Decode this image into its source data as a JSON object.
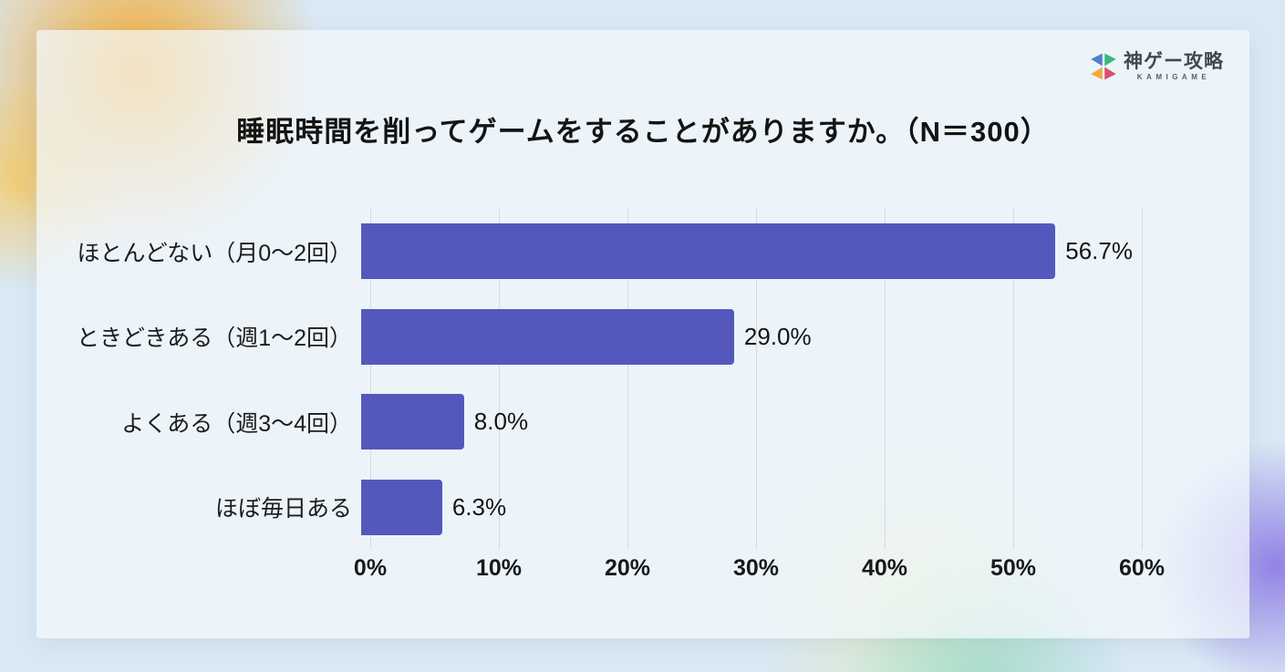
{
  "logo": {
    "title": "神ゲー攻略",
    "subtitle": "KAMIGAME",
    "icon": "kamigame-pinwheel-icon",
    "icon_colors": {
      "blue": "#4e7fd0",
      "green": "#3cb878",
      "yellow": "#f2a93b",
      "red": "#d84f6e"
    }
  },
  "chart_data": {
    "type": "bar",
    "orientation": "horizontal",
    "title": "睡眠時間を削ってゲームをすることがありますか。（N＝300）",
    "sample_size": 300,
    "categories": [
      "ほとんどない（月0〜2回）",
      "ときどきある（週1〜2回）",
      "よくある（週3〜4回）",
      "ほぼ毎日ある"
    ],
    "values": [
      56.7,
      29.0,
      8.0,
      6.3
    ],
    "value_labels": [
      "56.7%",
      "29.0%",
      "8.0%",
      "6.3%"
    ],
    "xlabel": "",
    "ylabel": "",
    "xlim": [
      0,
      60
    ],
    "x_ticks": [
      "0%",
      "10%",
      "20%",
      "30%",
      "40%",
      "50%",
      "60%"
    ],
    "x_tick_values": [
      0,
      10,
      20,
      30,
      40,
      50,
      60
    ],
    "grid": true,
    "legend": false,
    "bar_color": "#5458bd",
    "gridline_color": "#d6dade"
  }
}
